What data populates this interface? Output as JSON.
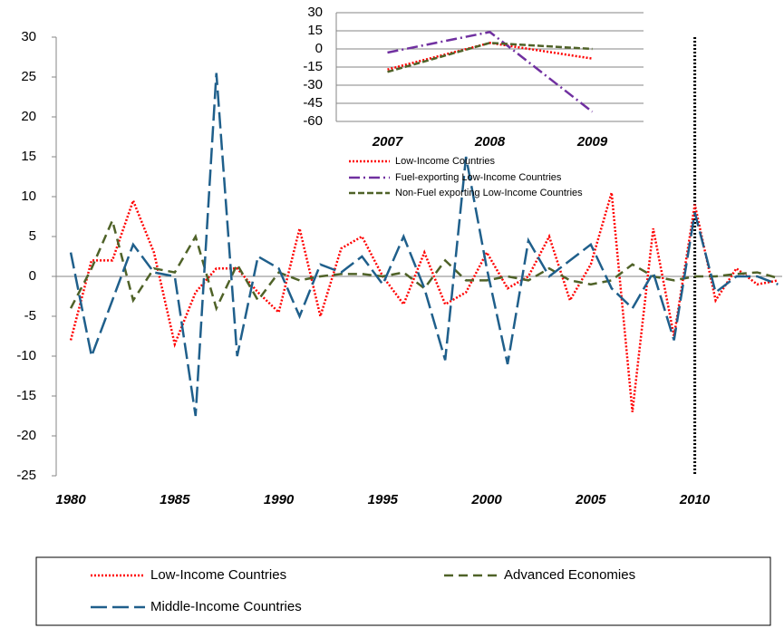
{
  "chart_data": [
    {
      "type": "line",
      "x": [
        1980,
        1981,
        1982,
        1983,
        1984,
        1985,
        1986,
        1987,
        1988,
        1989,
        1990,
        1991,
        1992,
        1993,
        1994,
        1995,
        1996,
        1997,
        1998,
        1999,
        2000,
        2001,
        2002,
        2003,
        2004,
        2005,
        2006,
        2007,
        2008,
        2009,
        2010,
        2011,
        2012,
        2013,
        2014
      ],
      "xlim": [
        1979.3,
        2014.2
      ],
      "xticks": [
        1980,
        1985,
        1990,
        1995,
        2000,
        2005,
        2010
      ],
      "ylim": [
        -25,
        30
      ],
      "yticks": [
        -25,
        -20,
        -15,
        -10,
        -5,
        0,
        5,
        10,
        15,
        20,
        25,
        30
      ],
      "vline": 2010,
      "series": [
        {
          "name": "Low-Income Countries",
          "color": "#ff0000",
          "values": [
            -8,
            2,
            2,
            9.5,
            3,
            -8.5,
            -2,
            1,
            1,
            -2,
            -4.5,
            6,
            -5,
            3.5,
            5,
            0,
            -3.5,
            3,
            -3.5,
            -2,
            3,
            -1.5,
            0,
            5,
            -3,
            1.5,
            10.5,
            -17,
            6,
            -7.5,
            9,
            -3,
            1,
            -1,
            -0.5
          ]
        },
        {
          "name": "Advanced Economies",
          "color": "#4f6228",
          "values": [
            -4,
            1,
            7,
            -3,
            1,
            0.5,
            5,
            -4,
            1.5,
            -3,
            0.5,
            -0.5,
            0,
            0.3,
            0.3,
            0,
            0.5,
            -1.5,
            2,
            -0.5,
            -0.5,
            0,
            -0.5,
            1,
            -0.5,
            -1,
            -0.5,
            1.5,
            0,
            -0.5,
            0,
            0,
            0.3,
            0.5,
            -0.2
          ]
        },
        {
          "name": "Middle-Income Countries",
          "color": "#1f5f8b",
          "values": [
            3,
            -10,
            -3,
            4,
            0.5,
            0,
            -17.5,
            25.5,
            -10,
            2.5,
            1,
            -5,
            1.5,
            0.5,
            2.5,
            -1,
            5,
            -1.5,
            -10.5,
            15,
            1,
            -11,
            4.5,
            0,
            2,
            4,
            -1.5,
            -4,
            0.5,
            -8,
            8,
            -2,
            0,
            0,
            -1
          ]
        }
      ]
    },
    {
      "type": "line",
      "categories": [
        "2007",
        "2008",
        "2009"
      ],
      "ylim": [
        -60,
        30
      ],
      "yticks": [
        -60,
        -45,
        -30,
        -15,
        0,
        15,
        30
      ],
      "grid": true,
      "series": [
        {
          "name": "Low-Income Countries",
          "color": "#ff0000",
          "values": [
            -17,
            5,
            -8
          ]
        },
        {
          "name": "Fuel-exporting Low-Income Countries",
          "color": "#7030a0",
          "values": [
            -3,
            14,
            -52
          ]
        },
        {
          "name": "Non-Fuel exporting Low-Income Countries",
          "color": "#4f6228",
          "values": [
            -19,
            5,
            0
          ]
        }
      ]
    }
  ]
}
